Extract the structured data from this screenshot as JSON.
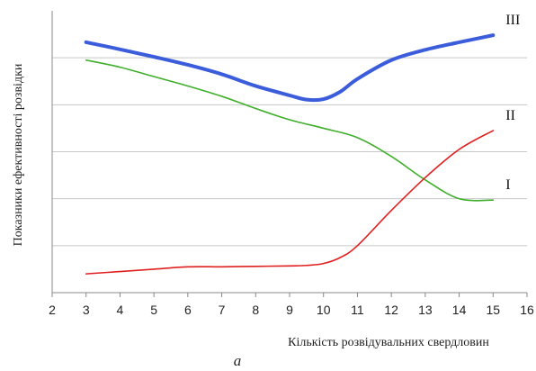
{
  "chart_data": {
    "type": "line",
    "xlabel": "Кількість розвідувальних свердловин",
    "ylabel": "Показники ефективності розвідки",
    "caption": "а",
    "xlim": [
      2,
      16
    ],
    "xticks": [
      2,
      3,
      4,
      5,
      6,
      7,
      8,
      9,
      10,
      11,
      12,
      13,
      14,
      15,
      16
    ],
    "ylim": [
      0,
      6
    ],
    "grid": "horizontal",
    "series": [
      {
        "name": "III",
        "color": "#3b5ddb",
        "x": [
          3,
          4,
          5,
          6,
          7,
          8,
          9,
          9.5,
          10,
          10.5,
          11,
          12,
          13,
          14,
          15
        ],
        "y": [
          5.33,
          5.18,
          5.02,
          4.85,
          4.65,
          4.4,
          4.2,
          4.11,
          4.12,
          4.28,
          4.55,
          4.95,
          5.17,
          5.33,
          5.48
        ]
      },
      {
        "name": "I",
        "color": "#3fae2a",
        "x": [
          3,
          4,
          5,
          6,
          7,
          8,
          9,
          10,
          11,
          12,
          13,
          14,
          15
        ],
        "y": [
          4.95,
          4.8,
          4.6,
          4.4,
          4.18,
          3.92,
          3.68,
          3.5,
          3.3,
          2.9,
          2.4,
          2.0,
          1.97
        ]
      },
      {
        "name": "II",
        "color": "#e02020",
        "x": [
          3,
          4,
          5,
          6,
          7,
          8,
          9,
          9.5,
          10,
          10.5,
          11,
          12,
          13,
          14,
          15
        ],
        "y": [
          0.4,
          0.45,
          0.5,
          0.55,
          0.55,
          0.56,
          0.57,
          0.58,
          0.62,
          0.75,
          1.0,
          1.75,
          2.45,
          3.05,
          3.45
        ]
      }
    ]
  }
}
